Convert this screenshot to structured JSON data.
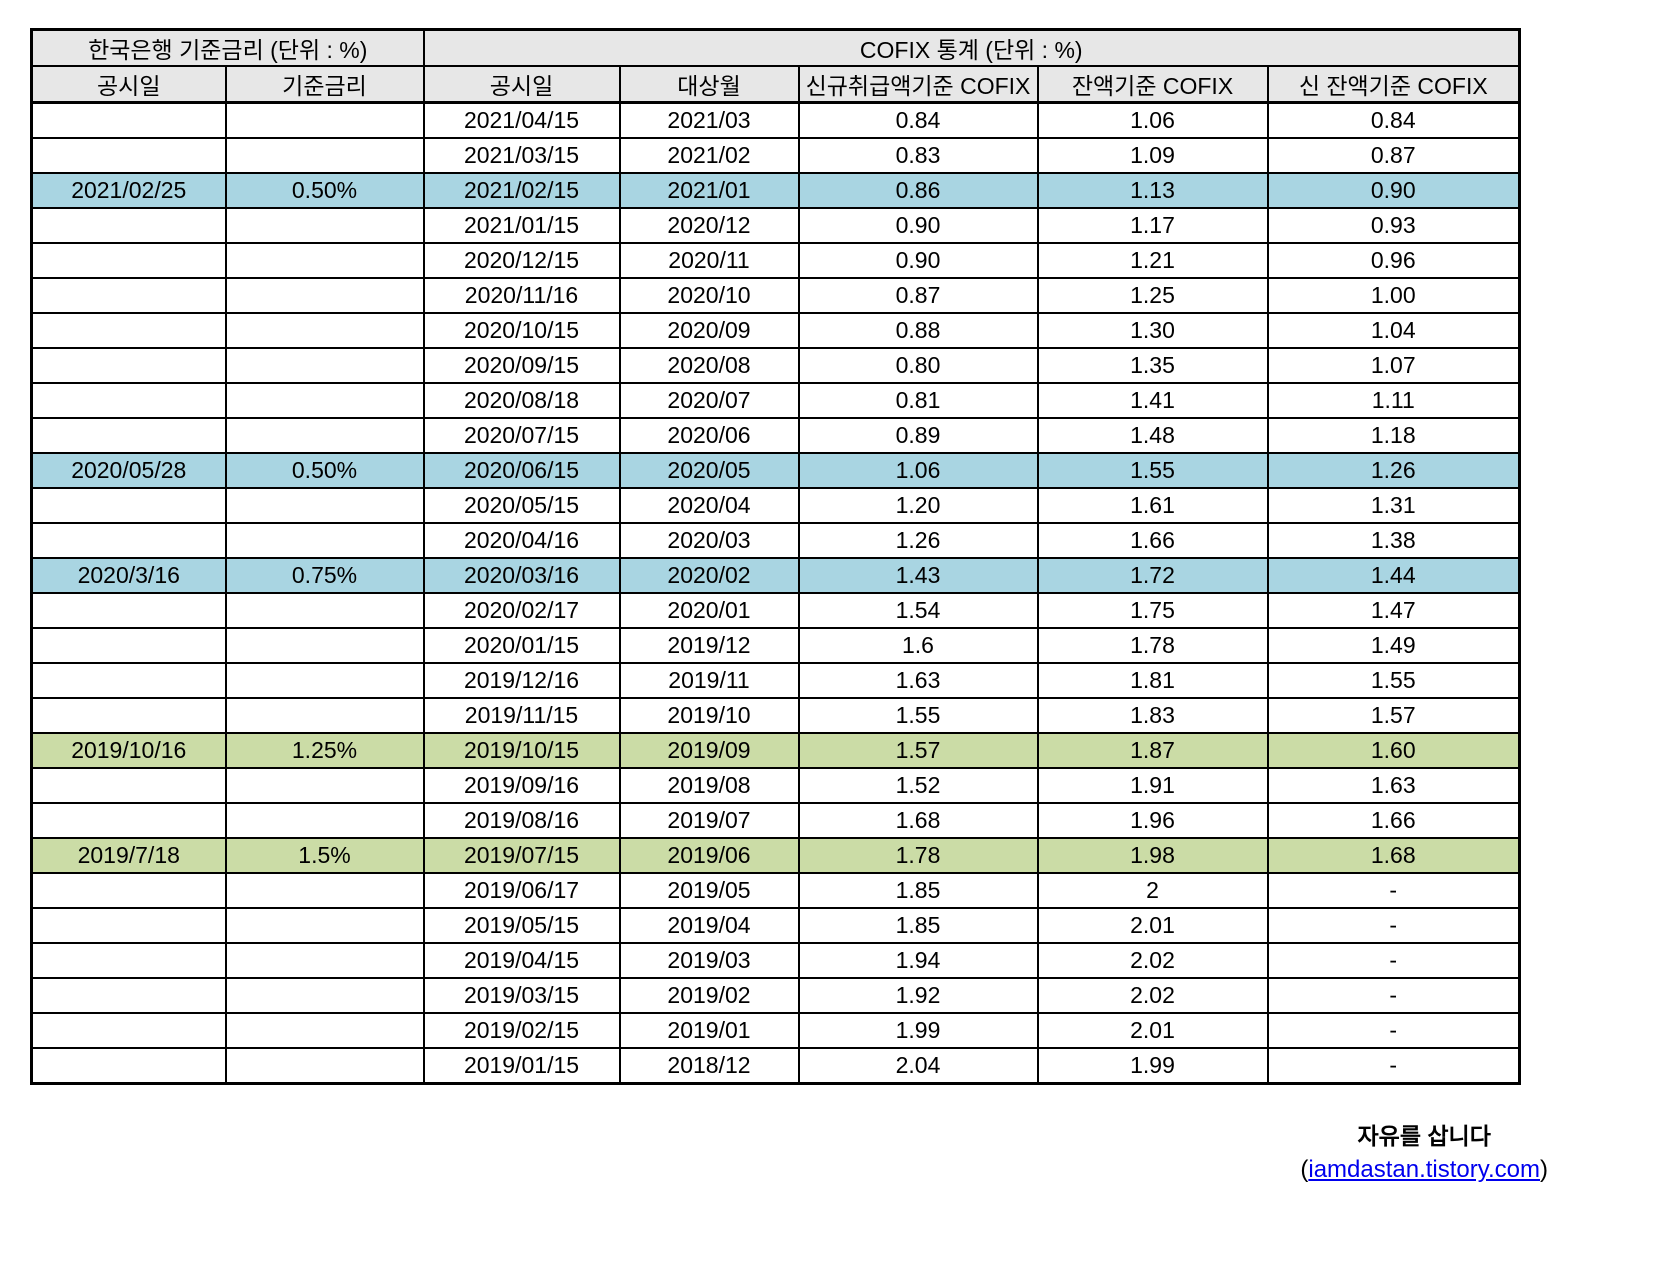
{
  "chart_data": {
    "type": "table",
    "sections": [
      {
        "title": "한국은행 기준금리 (단위 : %)",
        "columns": [
          "공시일",
          "기준금리"
        ]
      },
      {
        "title": "COFIX 통계 (단위 : %)",
        "columns": [
          "공시일",
          "대상월",
          "신규취급액기준 COFIX",
          "잔액기준 COFIX",
          "신 잔액기준 COFIX"
        ]
      }
    ],
    "rows": [
      {
        "cells": [
          "",
          "",
          "2021/04/15",
          "2021/03",
          "0.84",
          "1.06",
          "0.84"
        ],
        "highlight": ""
      },
      {
        "cells": [
          "",
          "",
          "2021/03/15",
          "2021/02",
          "0.83",
          "1.09",
          "0.87"
        ],
        "highlight": ""
      },
      {
        "cells": [
          "2021/02/25",
          "0.50%",
          "2021/02/15",
          "2021/01",
          "0.86",
          "1.13",
          "0.90"
        ],
        "highlight": "blue"
      },
      {
        "cells": [
          "",
          "",
          "2021/01/15",
          "2020/12",
          "0.90",
          "1.17",
          "0.93"
        ],
        "highlight": ""
      },
      {
        "cells": [
          "",
          "",
          "2020/12/15",
          "2020/11",
          "0.90",
          "1.21",
          "0.96"
        ],
        "highlight": ""
      },
      {
        "cells": [
          "",
          "",
          "2020/11/16",
          "2020/10",
          "0.87",
          "1.25",
          "1.00"
        ],
        "highlight": ""
      },
      {
        "cells": [
          "",
          "",
          "2020/10/15",
          "2020/09",
          "0.88",
          "1.30",
          "1.04"
        ],
        "highlight": ""
      },
      {
        "cells": [
          "",
          "",
          "2020/09/15",
          "2020/08",
          "0.80",
          "1.35",
          "1.07"
        ],
        "highlight": ""
      },
      {
        "cells": [
          "",
          "",
          "2020/08/18",
          "2020/07",
          "0.81",
          "1.41",
          "1.11"
        ],
        "highlight": ""
      },
      {
        "cells": [
          "",
          "",
          "2020/07/15",
          "2020/06",
          "0.89",
          "1.48",
          "1.18"
        ],
        "highlight": ""
      },
      {
        "cells": [
          "2020/05/28",
          "0.50%",
          "2020/06/15",
          "2020/05",
          "1.06",
          "1.55",
          "1.26"
        ],
        "highlight": "blue"
      },
      {
        "cells": [
          "",
          "",
          "2020/05/15",
          "2020/04",
          "1.20",
          "1.61",
          "1.31"
        ],
        "highlight": ""
      },
      {
        "cells": [
          "",
          "",
          "2020/04/16",
          "2020/03",
          "1.26",
          "1.66",
          "1.38"
        ],
        "highlight": ""
      },
      {
        "cells": [
          "2020/3/16",
          "0.75%",
          "2020/03/16",
          "2020/02",
          "1.43",
          "1.72",
          "1.44"
        ],
        "highlight": "blue"
      },
      {
        "cells": [
          "",
          "",
          "2020/02/17",
          "2020/01",
          "1.54",
          "1.75",
          "1.47"
        ],
        "highlight": ""
      },
      {
        "cells": [
          "",
          "",
          "2020/01/15",
          "2019/12",
          "1.6",
          "1.78",
          "1.49"
        ],
        "highlight": ""
      },
      {
        "cells": [
          "",
          "",
          "2019/12/16",
          "2019/11",
          "1.63",
          "1.81",
          "1.55"
        ],
        "highlight": ""
      },
      {
        "cells": [
          "",
          "",
          "2019/11/15",
          "2019/10",
          "1.55",
          "1.83",
          "1.57"
        ],
        "highlight": ""
      },
      {
        "cells": [
          "2019/10/16",
          "1.25%",
          "2019/10/15",
          "2019/09",
          "1.57",
          "1.87",
          "1.60"
        ],
        "highlight": "green"
      },
      {
        "cells": [
          "",
          "",
          "2019/09/16",
          "2019/08",
          "1.52",
          "1.91",
          "1.63"
        ],
        "highlight": ""
      },
      {
        "cells": [
          "",
          "",
          "2019/08/16",
          "2019/07",
          "1.68",
          "1.96",
          "1.66"
        ],
        "highlight": ""
      },
      {
        "cells": [
          "2019/7/18",
          "1.5%",
          "2019/07/15",
          "2019/06",
          "1.78",
          "1.98",
          "1.68"
        ],
        "highlight": "green"
      },
      {
        "cells": [
          "",
          "",
          "2019/06/17",
          "2019/05",
          "1.85",
          "2",
          "-"
        ],
        "highlight": ""
      },
      {
        "cells": [
          "",
          "",
          "2019/05/15",
          "2019/04",
          "1.85",
          "2.01",
          "-"
        ],
        "highlight": ""
      },
      {
        "cells": [
          "",
          "",
          "2019/04/15",
          "2019/03",
          "1.94",
          "2.02",
          "-"
        ],
        "highlight": ""
      },
      {
        "cells": [
          "",
          "",
          "2019/03/15",
          "2019/02",
          "1.92",
          "2.02",
          "-"
        ],
        "highlight": ""
      },
      {
        "cells": [
          "",
          "",
          "2019/02/15",
          "2019/01",
          "1.99",
          "2.01",
          "-"
        ],
        "highlight": ""
      },
      {
        "cells": [
          "",
          "",
          "2019/01/15",
          "2018/12",
          "2.04",
          "1.99",
          "-"
        ],
        "highlight": ""
      }
    ]
  },
  "footer": {
    "tagline": "자유를 삽니다",
    "link_open": "(",
    "link_text": "iamdastan.tistory.com",
    "link_close": ")"
  },
  "colors": {
    "highlight_blue": "#A9D5E2",
    "highlight_green": "#CBDCA6",
    "header_bg": "#E7E7E7",
    "link_blue": "#0000EE"
  }
}
